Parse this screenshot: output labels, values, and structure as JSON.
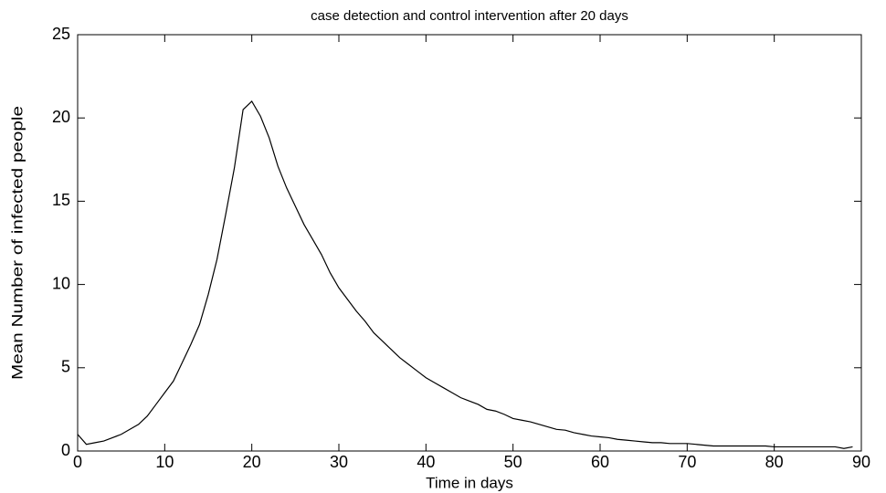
{
  "chart_data": {
    "type": "line",
    "title": "case detection and control intervention after 20 days",
    "xlabel": "Time in days",
    "ylabel": "Mean Number of infected people",
    "x": [
      0,
      1,
      2,
      3,
      4,
      5,
      6,
      7,
      8,
      9,
      10,
      11,
      12,
      13,
      14,
      15,
      16,
      17,
      18,
      19,
      20,
      21,
      22,
      23,
      24,
      25,
      26,
      27,
      28,
      29,
      30,
      31,
      32,
      33,
      34,
      35,
      36,
      37,
      38,
      39,
      40,
      41,
      42,
      43,
      44,
      45,
      46,
      47,
      48,
      49,
      50,
      51,
      52,
      53,
      54,
      55,
      56,
      57,
      58,
      59,
      60,
      61,
      62,
      63,
      64,
      65,
      66,
      67,
      68,
      69,
      70,
      71,
      72,
      73,
      74,
      75,
      76,
      77,
      78,
      79,
      80,
      81,
      82,
      83,
      84,
      85,
      86,
      87,
      88,
      89
    ],
    "series": [
      {
        "color": "#000000",
        "values": [
          1.0,
          0.4,
          0.5,
          0.6,
          0.8,
          1.0,
          1.3,
          1.6,
          2.1,
          2.8,
          3.5,
          4.2,
          5.3,
          6.4,
          7.6,
          9.4,
          11.5,
          14.2,
          17.0,
          20.5,
          21.0,
          20.1,
          18.8,
          17.1,
          15.8,
          14.7,
          13.6,
          12.7,
          11.8,
          10.7,
          9.8,
          9.1,
          8.4,
          7.8,
          7.1,
          6.6,
          6.1,
          5.6,
          5.2,
          4.8,
          4.4,
          4.1,
          3.8,
          3.5,
          3.2,
          3.0,
          2.8,
          2.5,
          2.4,
          2.2,
          1.95,
          1.85,
          1.75,
          1.6,
          1.45,
          1.3,
          1.25,
          1.1,
          1.0,
          0.9,
          0.85,
          0.8,
          0.7,
          0.65,
          0.6,
          0.55,
          0.5,
          0.5,
          0.45,
          0.45,
          0.45,
          0.4,
          0.35,
          0.3,
          0.3,
          0.3,
          0.3,
          0.3,
          0.3,
          0.3,
          0.25,
          0.25,
          0.25,
          0.25,
          0.25,
          0.25,
          0.25,
          0.25,
          0.15,
          0.25
        ]
      }
    ],
    "xlim": [
      0,
      90
    ],
    "xticks": [
      0,
      10,
      20,
      30,
      40,
      50,
      60,
      70,
      80,
      90
    ],
    "ylim": [
      0,
      25
    ],
    "yticks": [
      0,
      5,
      10,
      15,
      20,
      25
    ]
  }
}
